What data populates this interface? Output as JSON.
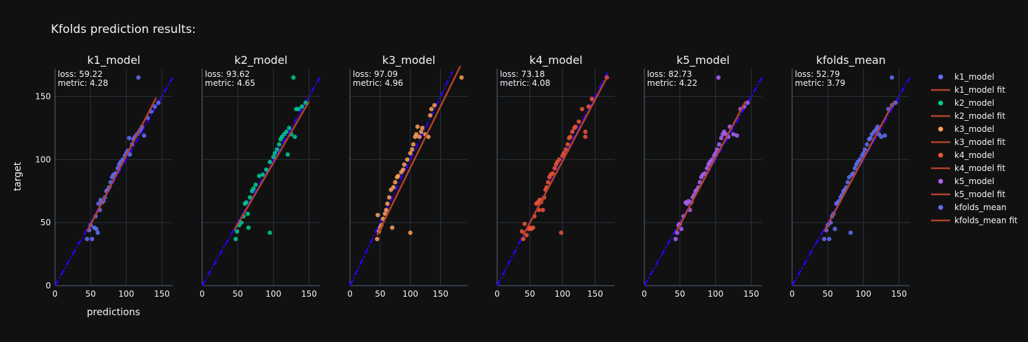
{
  "figure": {
    "title": "Kfolds prediction results:",
    "xlabel": "predictions",
    "ylabel": "target"
  },
  "colors": {
    "background": "#111111",
    "grid": "#283442",
    "axis_text": "#f2f5fa",
    "identity_line": "#2a00ff",
    "fit_line": "#b5422b",
    "k1_model": "#636efa",
    "k2_model": "#00cc96",
    "k3_model": "#ffa15a",
    "k4_model": "#ef553b",
    "k5_model": "#ab63fa",
    "kfolds_mean": "#636efa"
  },
  "legend": {
    "placement": "right",
    "entries": [
      {
        "label": "k1_model",
        "kind": "marker",
        "color_key": "k1_model"
      },
      {
        "label": "k1_model fit",
        "kind": "line",
        "color_key": "fit_line"
      },
      {
        "label": "k2_model",
        "kind": "marker",
        "color_key": "k2_model"
      },
      {
        "label": "k2_model fit",
        "kind": "line",
        "color_key": "fit_line"
      },
      {
        "label": "k3_model",
        "kind": "marker",
        "color_key": "k3_model"
      },
      {
        "label": "k3_model fit",
        "kind": "line",
        "color_key": "fit_line"
      },
      {
        "label": "k4_model",
        "kind": "marker",
        "color_key": "k4_model"
      },
      {
        "label": "k4_model fit",
        "kind": "line",
        "color_key": "fit_line"
      },
      {
        "label": "k5_model",
        "kind": "marker",
        "color_key": "k5_model"
      },
      {
        "label": "k5_model fit",
        "kind": "line",
        "color_key": "fit_line"
      },
      {
        "label": "kfolds_mean",
        "kind": "marker",
        "color_key": "kfolds_mean"
      },
      {
        "label": "kfolds_mean fit",
        "kind": "line",
        "color_key": "fit_line"
      }
    ]
  },
  "chart_data": [
    {
      "type": "scatter",
      "title": "k1_model",
      "color_key": "k1_model",
      "annotation": [
        "loss: 59.22",
        "metric: 4.28"
      ],
      "xlim": [
        0,
        165
      ],
      "ylim": [
        0,
        172
      ],
      "xticks": [
        0,
        50,
        100,
        150
      ],
      "yticks": [
        0,
        50,
        100,
        150
      ],
      "identity_line": [
        [
          0,
          0
        ],
        [
          165,
          165
        ]
      ],
      "fit_line": [
        [
          45,
          43
        ],
        [
          142,
          149
        ]
      ],
      "points": [
        [
          45,
          37
        ],
        [
          48,
          44
        ],
        [
          50,
          48
        ],
        [
          52,
          37
        ],
        [
          55,
          46
        ],
        [
          57,
          55
        ],
        [
          58,
          45
        ],
        [
          60,
          42
        ],
        [
          61,
          65
        ],
        [
          63,
          60
        ],
        [
          64,
          68
        ],
        [
          66,
          66
        ],
        [
          68,
          67
        ],
        [
          70,
          70
        ],
        [
          72,
          75
        ],
        [
          74,
          76
        ],
        [
          76,
          78
        ],
        [
          78,
          82
        ],
        [
          80,
          86
        ],
        [
          82,
          88
        ],
        [
          85,
          89
        ],
        [
          88,
          93
        ],
        [
          90,
          96
        ],
        [
          92,
          98
        ],
        [
          95,
          100
        ],
        [
          98,
          103
        ],
        [
          100,
          105
        ],
        [
          102,
          107
        ],
        [
          104,
          117
        ],
        [
          105,
          104
        ],
        [
          108,
          112
        ],
        [
          110,
          116
        ],
        [
          112,
          118
        ],
        [
          115,
          120
        ],
        [
          118,
          122
        ],
        [
          117,
          165
        ],
        [
          120,
          124
        ],
        [
          122,
          126
        ],
        [
          125,
          119
        ],
        [
          130,
          133
        ],
        [
          135,
          138
        ],
        [
          140,
          142
        ],
        [
          145,
          145
        ]
      ]
    },
    {
      "type": "scatter",
      "title": "k2_model",
      "color_key": "k2_model",
      "annotation": [
        "loss: 93.62",
        "metric: 4.65"
      ],
      "xlim": [
        0,
        165
      ],
      "ylim": [
        0,
        172
      ],
      "xticks": [
        0,
        50,
        100,
        150
      ],
      "yticks": [
        0,
        50,
        100,
        150
      ],
      "identity_line": [
        [
          0,
          0
        ],
        [
          165,
          165
        ]
      ],
      "fit_line": [
        [
          45,
          44
        ],
        [
          150,
          146
        ]
      ],
      "points": [
        [
          47,
          37
        ],
        [
          49,
          43
        ],
        [
          52,
          48
        ],
        [
          55,
          50
        ],
        [
          58,
          55
        ],
        [
          60,
          65
        ],
        [
          62,
          66
        ],
        [
          64,
          57
        ],
        [
          65,
          46
        ],
        [
          67,
          70
        ],
        [
          70,
          75
        ],
        [
          72,
          77
        ],
        [
          75,
          80
        ],
        [
          80,
          87
        ],
        [
          85,
          88
        ],
        [
          90,
          92
        ],
        [
          95,
          42
        ],
        [
          95,
          98
        ],
        [
          100,
          102
        ],
        [
          102,
          105
        ],
        [
          105,
          108
        ],
        [
          108,
          112
        ],
        [
          110,
          116
        ],
        [
          112,
          118
        ],
        [
          115,
          120
        ],
        [
          118,
          122
        ],
        [
          120,
          104
        ],
        [
          122,
          125
        ],
        [
          125,
          120
        ],
        [
          128,
          165
        ],
        [
          130,
          118
        ],
        [
          132,
          140
        ],
        [
          135,
          140
        ],
        [
          140,
          142
        ],
        [
          145,
          145
        ]
      ]
    },
    {
      "type": "scatter",
      "title": "k3_model",
      "color_key": "k3_model",
      "annotation": [
        "loss: 97.09",
        "metric: 4.96"
      ],
      "xlim": [
        0,
        195
      ],
      "ylim": [
        0,
        172
      ],
      "xticks": [
        0,
        50,
        100,
        150
      ],
      "yticks": [
        0,
        50,
        100,
        150
      ],
      "identity_line": [
        [
          0,
          0
        ],
        [
          170,
          170
        ]
      ],
      "fit_line": [
        [
          45,
          40
        ],
        [
          183,
          174
        ]
      ],
      "points": [
        [
          45,
          37
        ],
        [
          46,
          56
        ],
        [
          48,
          43
        ],
        [
          50,
          46
        ],
        [
          52,
          48
        ],
        [
          55,
          53
        ],
        [
          58,
          57
        ],
        [
          60,
          60
        ],
        [
          62,
          65
        ],
        [
          65,
          70
        ],
        [
          68,
          76
        ],
        [
          70,
          46
        ],
        [
          72,
          78
        ],
        [
          75,
          82
        ],
        [
          78,
          86
        ],
        [
          80,
          87
        ],
        [
          85,
          90
        ],
        [
          88,
          92
        ],
        [
          90,
          96
        ],
        [
          95,
          100
        ],
        [
          100,
          42
        ],
        [
          100,
          105
        ],
        [
          103,
          108
        ],
        [
          105,
          112
        ],
        [
          108,
          118
        ],
        [
          110,
          120
        ],
        [
          112,
          126
        ],
        [
          115,
          118
        ],
        [
          118,
          122
        ],
        [
          120,
          125
        ],
        [
          125,
          120
        ],
        [
          130,
          118
        ],
        [
          133,
          135
        ],
        [
          135,
          140
        ],
        [
          140,
          143
        ],
        [
          185,
          165
        ]
      ]
    },
    {
      "type": "scatter",
      "title": "k4_model",
      "color_key": "k4_model",
      "annotation": [
        "loss: 73.18",
        "metric: 4.08"
      ],
      "xlim": [
        0,
        180
      ],
      "ylim": [
        0,
        172
      ],
      "xticks": [
        0,
        50,
        100,
        150
      ],
      "yticks": [
        0,
        50,
        100,
        150
      ],
      "identity_line": [
        [
          0,
          0
        ],
        [
          170,
          170
        ]
      ],
      "fit_line": [
        [
          40,
          40
        ],
        [
          168,
          165
        ]
      ],
      "points": [
        [
          38,
          43
        ],
        [
          40,
          37
        ],
        [
          42,
          49
        ],
        [
          45,
          40
        ],
        [
          48,
          45
        ],
        [
          50,
          46
        ],
        [
          52,
          45
        ],
        [
          55,
          46
        ],
        [
          57,
          55
        ],
        [
          60,
          65
        ],
        [
          62,
          66
        ],
        [
          64,
          60
        ],
        [
          65,
          68
        ],
        [
          67,
          66
        ],
        [
          68,
          68
        ],
        [
          70,
          60
        ],
        [
          72,
          70
        ],
        [
          74,
          76
        ],
        [
          76,
          78
        ],
        [
          78,
          82
        ],
        [
          80,
          86
        ],
        [
          82,
          88
        ],
        [
          85,
          89
        ],
        [
          88,
          93
        ],
        [
          90,
          96
        ],
        [
          92,
          98
        ],
        [
          95,
          100
        ],
        [
          98,
          42
        ],
        [
          100,
          103
        ],
        [
          102,
          105
        ],
        [
          105,
          108
        ],
        [
          108,
          112
        ],
        [
          110,
          117
        ],
        [
          112,
          118
        ],
        [
          115,
          122
        ],
        [
          118,
          125
        ],
        [
          120,
          126
        ],
        [
          125,
          130
        ],
        [
          130,
          140
        ],
        [
          135,
          122
        ],
        [
          135,
          118
        ],
        [
          140,
          142
        ],
        [
          145,
          148
        ],
        [
          168,
          165
        ]
      ]
    },
    {
      "type": "scatter",
      "title": "k5_model",
      "color_key": "k5_model",
      "annotation": [
        "loss: 82.73",
        "metric: 4.22"
      ],
      "xlim": [
        0,
        165
      ],
      "ylim": [
        0,
        172
      ],
      "xticks": [
        0,
        50,
        100,
        150
      ],
      "yticks": [
        0,
        50,
        100,
        150
      ],
      "identity_line": [
        [
          0,
          0
        ],
        [
          165,
          165
        ]
      ],
      "fit_line": [
        [
          45,
          43
        ],
        [
          142,
          146
        ]
      ],
      "points": [
        [
          44,
          37
        ],
        [
          46,
          42
        ],
        [
          48,
          48
        ],
        [
          50,
          49
        ],
        [
          52,
          45
        ],
        [
          55,
          55
        ],
        [
          58,
          66
        ],
        [
          60,
          65
        ],
        [
          62,
          67
        ],
        [
          64,
          60
        ],
        [
          66,
          66
        ],
        [
          68,
          70
        ],
        [
          70,
          72
        ],
        [
          72,
          75
        ],
        [
          74,
          76
        ],
        [
          76,
          78
        ],
        [
          78,
          82
        ],
        [
          80,
          86
        ],
        [
          82,
          88
        ],
        [
          85,
          89
        ],
        [
          88,
          93
        ],
        [
          90,
          96
        ],
        [
          92,
          98
        ],
        [
          95,
          100
        ],
        [
          98,
          103
        ],
        [
          100,
          105
        ],
        [
          102,
          108
        ],
        [
          104,
          165
        ],
        [
          105,
          112
        ],
        [
          108,
          117
        ],
        [
          110,
          120
        ],
        [
          112,
          122
        ],
        [
          115,
          120
        ],
        [
          118,
          118
        ],
        [
          120,
          126
        ],
        [
          125,
          120
        ],
        [
          130,
          119
        ],
        [
          135,
          140
        ],
        [
          140,
          142
        ],
        [
          145,
          145
        ]
      ]
    },
    {
      "type": "scatter",
      "title": "kfolds_mean",
      "color_key": "kfolds_mean",
      "annotation": [
        "loss: 52.79",
        "metric: 3.79"
      ],
      "xlim": [
        0,
        165
      ],
      "ylim": [
        0,
        172
      ],
      "xticks": [
        0,
        50,
        100,
        150
      ],
      "yticks": [
        0,
        50,
        100,
        150
      ],
      "identity_line": [
        [
          0,
          0
        ],
        [
          165,
          165
        ]
      ],
      "fit_line": [
        [
          45,
          43
        ],
        [
          143,
          146
        ]
      ],
      "points": [
        [
          45,
          37
        ],
        [
          48,
          44
        ],
        [
          50,
          48
        ],
        [
          52,
          37
        ],
        [
          54,
          50
        ],
        [
          56,
          55
        ],
        [
          58,
          57
        ],
        [
          60,
          45
        ],
        [
          62,
          65
        ],
        [
          64,
          66
        ],
        [
          66,
          67
        ],
        [
          68,
          70
        ],
        [
          70,
          72
        ],
        [
          72,
          75
        ],
        [
          74,
          76
        ],
        [
          76,
          78
        ],
        [
          78,
          82
        ],
        [
          80,
          86
        ],
        [
          82,
          42
        ],
        [
          84,
          88
        ],
        [
          86,
          89
        ],
        [
          88,
          93
        ],
        [
          90,
          96
        ],
        [
          92,
          98
        ],
        [
          95,
          100
        ],
        [
          98,
          103
        ],
        [
          100,
          105
        ],
        [
          102,
          108
        ],
        [
          105,
          112
        ],
        [
          108,
          116
        ],
        [
          110,
          117
        ],
        [
          112,
          120
        ],
        [
          115,
          122
        ],
        [
          118,
          124
        ],
        [
          120,
          126
        ],
        [
          122,
          120
        ],
        [
          125,
          118
        ],
        [
          130,
          119
        ],
        [
          135,
          140
        ],
        [
          140,
          143
        ],
        [
          140,
          165
        ],
        [
          145,
          145
        ]
      ]
    }
  ]
}
